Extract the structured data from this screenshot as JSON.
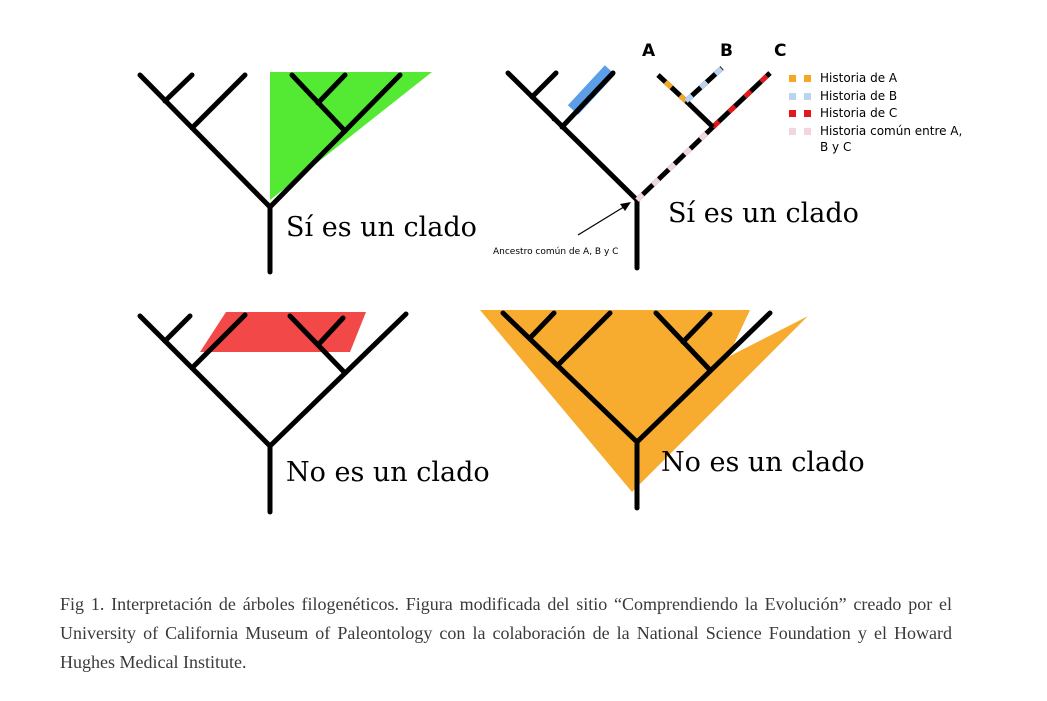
{
  "panels": {
    "top_left": {
      "label": "Sí es un clado"
    },
    "top_right": {
      "label": "Sí es un clado",
      "ancestor_label": "Ancestro común de A, B y C"
    },
    "bottom_left": {
      "label": "No es un clado"
    },
    "bottom_right": {
      "label": "No es un clado"
    }
  },
  "taxa": [
    "A",
    "B",
    "C"
  ],
  "legend": [
    {
      "label": "Historia de A",
      "color": "#f5a623"
    },
    {
      "label": "Historia de B",
      "color": "#b9d3f2"
    },
    {
      "label": "Historia de C",
      "color": "#e0191c"
    },
    {
      "label": "Historia común entre A,",
      "label2": "B y C",
      "color": "#f1d6dc"
    }
  ],
  "colors": {
    "green": "#54ea33",
    "red": "#f24848",
    "orange": "#f7ac2f",
    "blue": "#5c9ee8"
  },
  "caption": "Fig 1. Interpretación de árboles filogenéticos. Figura modificada del sitio “Comprendiendo la Evolución” creado por el University of California Museum of Paleontology con la colaboración de la National Science Foundation y el Howard Hughes Medical Institute."
}
